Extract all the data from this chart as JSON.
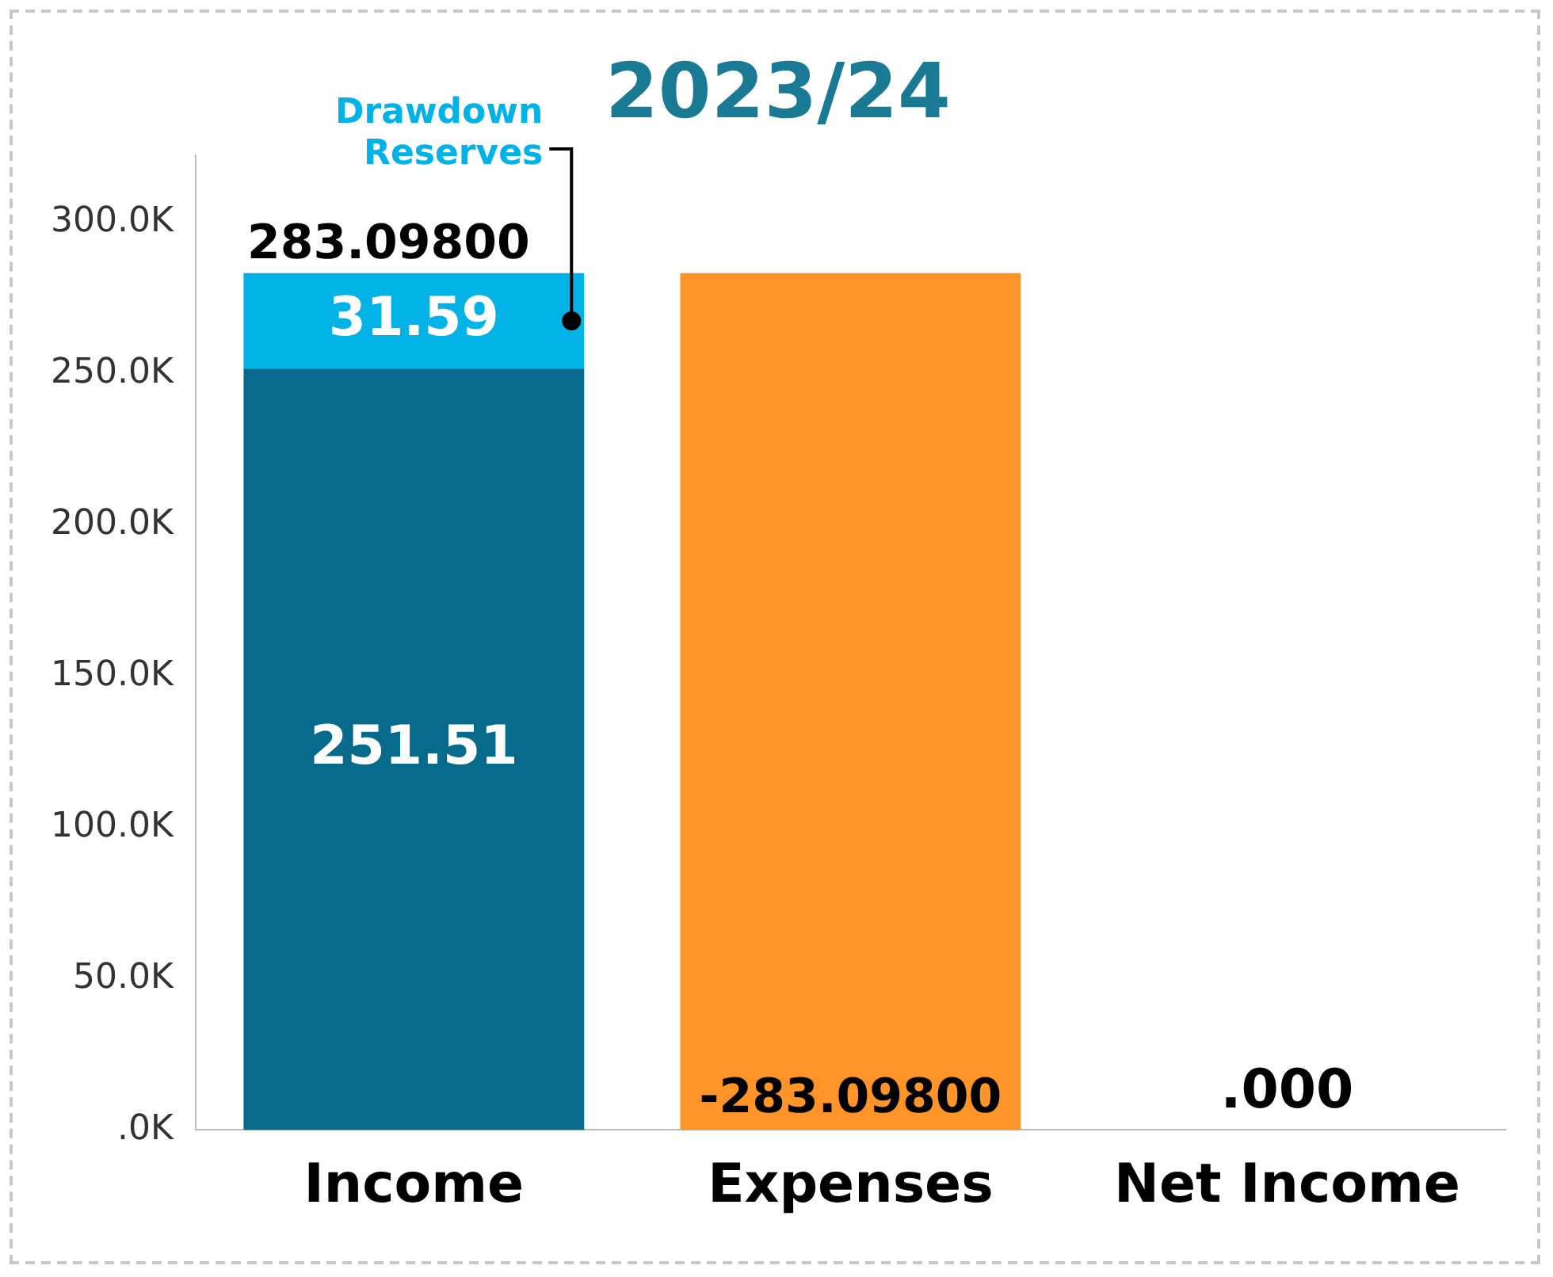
{
  "chart_data": {
    "type": "bar",
    "title": "2023/24",
    "categories": [
      "Income",
      "Expenses",
      "Net Income"
    ],
    "stacked": true,
    "series": [
      {
        "color": "#066a8a",
        "values": [
          251.51,
          null,
          0
        ],
        "value_labels": [
          "251.51",
          null,
          ".000"
        ]
      },
      {
        "name": "Drawdown Reserves",
        "color": "#00b2e6",
        "values": [
          31.588,
          null,
          null
        ],
        "value_labels": [
          "31.59",
          null,
          null
        ]
      },
      {
        "color": "#ff9428",
        "values": [
          null,
          283.098,
          null
        ]
      }
    ],
    "annotations": [
      {
        "text": "-283.09800",
        "x": "Expenses",
        "y": 0
      }
    ],
    "totals": [
      "283.09800",
      null,
      null
    ],
    "ylim": [
      0,
      322
    ],
    "yticks": [
      {
        "value": 0,
        "label": ".0K"
      },
      {
        "value": 50,
        "label": "50.0K"
      },
      {
        "value": 100,
        "label": "100.0K"
      },
      {
        "value": 150,
        "label": "150.0K"
      },
      {
        "value": 200,
        "label": "200.0K"
      },
      {
        "value": 250,
        "label": "250.0K"
      },
      {
        "value": 300,
        "label": "300.0K"
      }
    ],
    "grid": false,
    "legend": false
  }
}
